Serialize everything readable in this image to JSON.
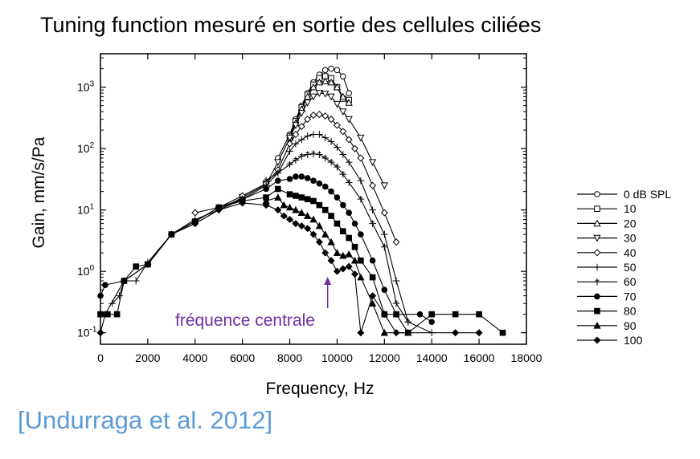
{
  "slide": {
    "title": "Tuning function mesuré en sortie des cellules ciliées",
    "citation": "[Undurraga et al. 2012]",
    "citation_color": "#5b9bd5"
  },
  "annotation": {
    "text": "fréquence centrale",
    "color": "#7030a0",
    "x": 9600
  },
  "chart_data": {
    "type": "line",
    "title": "",
    "xlabel": "Frequency, Hz",
    "ylabel": "Gain, mm/s/Pa",
    "xlim": [
      0,
      18000
    ],
    "ylim": [
      0.065,
      3500
    ],
    "yscale": "log",
    "x_ticks": [
      0,
      2000,
      4000,
      6000,
      8000,
      10000,
      12000,
      14000,
      16000,
      18000
    ],
    "y_ticks": [
      {
        "value": 0.1,
        "base": "10",
        "exp": "-1"
      },
      {
        "value": 1,
        "base": "10",
        "exp": "0"
      },
      {
        "value": 10,
        "base": "10",
        "exp": "1"
      },
      {
        "value": 100,
        "base": "10",
        "exp": "2"
      },
      {
        "value": 1000,
        "base": "10",
        "exp": "3"
      }
    ],
    "grid": false,
    "legend_position": "right",
    "series": [
      {
        "name": "0 dB SPL",
        "marker": "circle-open",
        "points": [
          [
            7500,
            70
          ],
          [
            8000,
            170
          ],
          [
            8250,
            300
          ],
          [
            8500,
            500
          ],
          [
            8750,
            800
          ],
          [
            9000,
            1200
          ],
          [
            9250,
            1600
          ],
          [
            9500,
            1900
          ],
          [
            9750,
            2000
          ],
          [
            10000,
            1900
          ],
          [
            10250,
            1500
          ],
          [
            10500,
            800
          ]
        ]
      },
      {
        "name": "10",
        "marker": "square-open",
        "points": [
          [
            8000,
            160
          ],
          [
            8250,
            280
          ],
          [
            8500,
            470
          ],
          [
            8750,
            750
          ],
          [
            9000,
            1100
          ],
          [
            9250,
            1400
          ],
          [
            9500,
            1500
          ],
          [
            9750,
            1400
          ],
          [
            10000,
            1000
          ],
          [
            10250,
            650
          ],
          [
            10500,
            620
          ]
        ]
      },
      {
        "name": "20",
        "marker": "triangle-up-open",
        "points": [
          [
            8000,
            150
          ],
          [
            8250,
            260
          ],
          [
            8500,
            440
          ],
          [
            8750,
            700
          ],
          [
            9000,
            1000
          ],
          [
            9250,
            1200
          ],
          [
            9500,
            1250
          ],
          [
            9750,
            1200
          ],
          [
            10000,
            1000
          ],
          [
            10250,
            700
          ],
          [
            10500,
            560
          ]
        ]
      },
      {
        "name": "30",
        "marker": "triangle-down-open",
        "points": [
          [
            4000,
            6
          ],
          [
            5000,
            10
          ],
          [
            6000,
            16
          ],
          [
            7000,
            26
          ],
          [
            7500,
            60
          ],
          [
            8000,
            150
          ],
          [
            8250,
            240
          ],
          [
            8500,
            380
          ],
          [
            8750,
            560
          ],
          [
            9000,
            700
          ],
          [
            9250,
            800
          ],
          [
            9500,
            780
          ],
          [
            9750,
            700
          ],
          [
            10000,
            530
          ],
          [
            10250,
            400
          ],
          [
            10500,
            300
          ],
          [
            11000,
            150
          ],
          [
            11500,
            60
          ],
          [
            12000,
            25
          ]
        ]
      },
      {
        "name": "40",
        "marker": "diamond-open",
        "points": [
          [
            4000,
            9
          ],
          [
            5000,
            11
          ],
          [
            6000,
            17
          ],
          [
            7000,
            27
          ],
          [
            7500,
            45
          ],
          [
            8000,
            120
          ],
          [
            8250,
            170
          ],
          [
            8500,
            230
          ],
          [
            8750,
            300
          ],
          [
            9000,
            350
          ],
          [
            9250,
            360
          ],
          [
            9500,
            340
          ],
          [
            9750,
            300
          ],
          [
            10000,
            240
          ],
          [
            10250,
            190
          ],
          [
            10500,
            140
          ],
          [
            10750,
            100
          ],
          [
            11000,
            70
          ],
          [
            11500,
            25
          ],
          [
            12000,
            9
          ],
          [
            12500,
            3
          ]
        ]
      },
      {
        "name": "50",
        "marker": "plus",
        "points": [
          [
            500,
            0.3
          ],
          [
            800,
            0.4
          ],
          [
            1000,
            0.7
          ],
          [
            1500,
            0.7
          ],
          [
            2000,
            1.4
          ],
          [
            3000,
            4
          ],
          [
            4000,
            7
          ],
          [
            5000,
            10
          ],
          [
            6000,
            15
          ],
          [
            7000,
            25
          ],
          [
            7500,
            40
          ],
          [
            8000,
            90
          ],
          [
            8250,
            120
          ],
          [
            8500,
            140
          ],
          [
            8750,
            160
          ],
          [
            9000,
            170
          ],
          [
            9250,
            170
          ],
          [
            9500,
            150
          ],
          [
            9750,
            130
          ],
          [
            10000,
            105
          ],
          [
            10250,
            80
          ],
          [
            10500,
            60
          ],
          [
            11000,
            30
          ],
          [
            11500,
            10
          ],
          [
            12000,
            4
          ],
          [
            12500,
            0.7
          ],
          [
            13000,
            0.15
          ],
          [
            14000,
            0.1
          ]
        ]
      },
      {
        "name": "60",
        "marker": "cross",
        "points": [
          [
            7000,
            30
          ],
          [
            7500,
            40
          ],
          [
            8000,
            55
          ],
          [
            8250,
            65
          ],
          [
            8500,
            75
          ],
          [
            8750,
            80
          ],
          [
            9000,
            82
          ],
          [
            9250,
            80
          ],
          [
            9500,
            70
          ],
          [
            9750,
            60
          ],
          [
            10000,
            50
          ],
          [
            10250,
            38
          ],
          [
            10500,
            28
          ],
          [
            11000,
            15
          ],
          [
            11500,
            6
          ],
          [
            12000,
            2.5
          ],
          [
            12500,
            0.3
          ],
          [
            13000,
            0.15
          ]
        ]
      },
      {
        "name": "70",
        "marker": "circle-filled",
        "points": [
          [
            0,
            0.4
          ],
          [
            200,
            0.6
          ],
          [
            1000,
            0.7
          ],
          [
            2000,
            1.3
          ],
          [
            3000,
            4
          ],
          [
            4000,
            6.5
          ],
          [
            5000,
            11
          ],
          [
            6000,
            15
          ],
          [
            7000,
            22
          ],
          [
            7500,
            30
          ],
          [
            8000,
            32
          ],
          [
            8250,
            35
          ],
          [
            8500,
            35
          ],
          [
            8750,
            33
          ],
          [
            9000,
            30
          ],
          [
            9250,
            27
          ],
          [
            9500,
            24
          ],
          [
            9750,
            20
          ],
          [
            10000,
            16
          ],
          [
            10250,
            12
          ],
          [
            10500,
            9
          ],
          [
            10750,
            6
          ],
          [
            11000,
            4
          ],
          [
            11500,
            1.5
          ],
          [
            12000,
            0.5
          ],
          [
            12500,
            0.2
          ],
          [
            13500,
            0.2
          ],
          [
            14000,
            0.15
          ]
        ]
      },
      {
        "name": "80",
        "marker": "square-filled",
        "points": [
          [
            0,
            0.2
          ],
          [
            300,
            0.2
          ],
          [
            700,
            0.2
          ],
          [
            1000,
            0.7
          ],
          [
            1500,
            1.2
          ],
          [
            2000,
            1.3
          ],
          [
            3000,
            4
          ],
          [
            4000,
            6.5
          ],
          [
            5000,
            11
          ],
          [
            6000,
            14
          ],
          [
            7000,
            16
          ],
          [
            7500,
            22
          ],
          [
            8000,
            18
          ],
          [
            8250,
            17
          ],
          [
            8500,
            16
          ],
          [
            8750,
            15
          ],
          [
            9000,
            14
          ],
          [
            9250,
            12
          ],
          [
            9500,
            10
          ],
          [
            9750,
            8
          ],
          [
            10000,
            6
          ],
          [
            10250,
            4.5
          ],
          [
            10500,
            3.5
          ],
          [
            10750,
            2.5
          ],
          [
            11000,
            1.5
          ],
          [
            11500,
            0.8
          ],
          [
            12000,
            0.2
          ],
          [
            12500,
            0.2
          ],
          [
            13000,
            0.1
          ],
          [
            14000,
            0.2
          ],
          [
            15000,
            0.2
          ],
          [
            16000,
            0.2
          ],
          [
            17000,
            0.1
          ]
        ]
      },
      {
        "name": "90",
        "marker": "triangle-filled",
        "points": [
          [
            7000,
            14
          ],
          [
            7500,
            16
          ],
          [
            7750,
            12
          ],
          [
            8000,
            11
          ],
          [
            8250,
            10
          ],
          [
            8500,
            9
          ],
          [
            8750,
            8
          ],
          [
            9000,
            7
          ],
          [
            9250,
            5.5
          ],
          [
            9500,
            4
          ],
          [
            9750,
            3
          ],
          [
            10000,
            2
          ],
          [
            10250,
            1.8
          ],
          [
            10500,
            1.9
          ],
          [
            10750,
            1.5
          ],
          [
            11000,
            0.8
          ],
          [
            11500,
            0.3
          ],
          [
            12000,
            0.1
          ],
          [
            13000,
            0.1
          ]
        ]
      },
      {
        "name": "100",
        "marker": "diamond-filled",
        "points": [
          [
            0,
            0.1
          ],
          [
            200,
            0.2
          ],
          [
            1000,
            0.7
          ],
          [
            2000,
            1.3
          ],
          [
            3000,
            4
          ],
          [
            4000,
            6
          ],
          [
            5000,
            10
          ],
          [
            6000,
            13
          ],
          [
            7000,
            12
          ],
          [
            7500,
            10
          ],
          [
            7750,
            8
          ],
          [
            8000,
            7
          ],
          [
            8250,
            6
          ],
          [
            8500,
            5.5
          ],
          [
            8750,
            5
          ],
          [
            9000,
            4
          ],
          [
            9250,
            3
          ],
          [
            9500,
            2
          ],
          [
            9750,
            1.5
          ],
          [
            10000,
            1
          ],
          [
            10250,
            1.1
          ],
          [
            10500,
            1.2
          ],
          [
            10750,
            0.9
          ],
          [
            11000,
            0.1
          ],
          [
            11500,
            0.4
          ],
          [
            12000,
            0.2
          ],
          [
            12500,
            0.1
          ],
          [
            15000,
            0.1
          ],
          [
            16000,
            0.1
          ]
        ]
      }
    ]
  }
}
